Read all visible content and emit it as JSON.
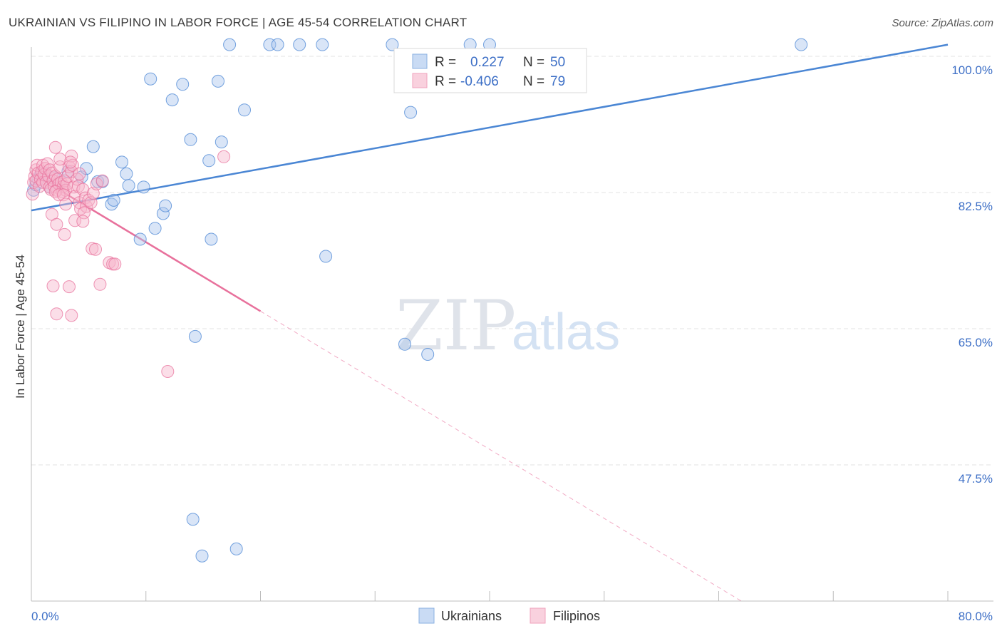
{
  "title": "UKRAINIAN VS FILIPINO IN LABOR FORCE | AGE 45-54 CORRELATION CHART",
  "source": "Source: ZipAtlas.com",
  "colors": {
    "blue": "#4a86d4",
    "blue_fill": "#aac6ee",
    "pink": "#e8719c",
    "pink_fill": "#f6b6cb",
    "tick_text": "#3d6fc6",
    "grid": "#e3e3e3"
  },
  "watermark": {
    "zip": "ZIP",
    "atlas": "atlas"
  },
  "legend": {
    "r_label": "R =",
    "n_label": "N =",
    "rows": [
      {
        "r": "0.227",
        "n": "50"
      },
      {
        "r": "-0.406",
        "n": "79"
      }
    ]
  },
  "bottom_legend": [
    "Ukrainians",
    "Filipinos"
  ],
  "chart_data": {
    "type": "scatter",
    "title": "UKRAINIAN VS FILIPINO IN LABOR FORCE | AGE 45-54 CORRELATION CHART",
    "xlabel": "",
    "ylabel": "In Labor Force | Age 45-54",
    "xlim": [
      0,
      80
    ],
    "ylim": [
      30,
      102
    ],
    "x_tick_labels": [
      "0.0%",
      "80.0%"
    ],
    "y_ticks": [
      {
        "value": 100,
        "label": "100.0%"
      },
      {
        "value": 82.5,
        "label": "82.5%"
      },
      {
        "value": 65,
        "label": "65.0%"
      },
      {
        "value": 47.5,
        "label": "47.5%"
      }
    ],
    "series": [
      {
        "name": "Ukrainians",
        "r": 0.227,
        "n": 50,
        "trend": {
          "x0": 0,
          "y0": 80.2,
          "x1": 80,
          "y1": 101.5,
          "solid_to": 80
        },
        "points": [
          [
            0.2,
            82.8
          ],
          [
            0.4,
            83.5
          ],
          [
            0.6,
            84.2
          ],
          [
            0.8,
            84.8
          ],
          [
            1.2,
            85.0
          ],
          [
            1.6,
            83.2
          ],
          [
            2.0,
            84.4
          ],
          [
            2.4,
            83.6
          ],
          [
            3.2,
            85.2
          ],
          [
            4.4,
            84.5
          ],
          [
            4.8,
            85.6
          ],
          [
            5.4,
            88.4
          ],
          [
            5.8,
            83.9
          ],
          [
            6.2,
            83.9
          ],
          [
            7.0,
            81.0
          ],
          [
            7.2,
            81.5
          ],
          [
            7.9,
            86.4
          ],
          [
            8.3,
            84.9
          ],
          [
            8.5,
            83.4
          ],
          [
            9.5,
            76.5
          ],
          [
            9.8,
            83.2
          ],
          [
            10.4,
            97.1
          ],
          [
            10.8,
            77.9
          ],
          [
            11.5,
            79.8
          ],
          [
            11.7,
            80.8
          ],
          [
            12.3,
            94.4
          ],
          [
            13.2,
            96.4
          ],
          [
            13.9,
            89.3
          ],
          [
            14.1,
            40.5
          ],
          [
            14.3,
            64.0
          ],
          [
            14.9,
            35.8
          ],
          [
            15.5,
            86.6
          ],
          [
            15.7,
            76.5
          ],
          [
            16.3,
            96.8
          ],
          [
            16.6,
            89.0
          ],
          [
            17.3,
            101.5
          ],
          [
            17.9,
            36.7
          ],
          [
            18.6,
            93.1
          ],
          [
            20.8,
            101.5
          ],
          [
            21.5,
            101.5
          ],
          [
            23.4,
            101.5
          ],
          [
            25.4,
            101.5
          ],
          [
            25.7,
            74.3
          ],
          [
            31.5,
            101.5
          ],
          [
            32.6,
            63.0
          ],
          [
            33.1,
            92.8
          ],
          [
            34.6,
            61.7
          ],
          [
            38.3,
            101.5
          ],
          [
            40.0,
            101.5
          ],
          [
            67.2,
            101.5
          ]
        ]
      },
      {
        "name": "Filipinos",
        "r": -0.406,
        "n": 79,
        "trend": {
          "x0": 0,
          "y0": 85.0,
          "x1": 80,
          "y1": 14.0,
          "solid_to": 20
        },
        "points": [
          [
            0.1,
            82.3
          ],
          [
            0.2,
            83.8
          ],
          [
            0.3,
            84.6
          ],
          [
            0.4,
            85.4
          ],
          [
            0.4,
            84.0
          ],
          [
            0.5,
            86.0
          ],
          [
            0.6,
            85.0
          ],
          [
            0.7,
            83.3
          ],
          [
            0.8,
            84.2
          ],
          [
            0.9,
            85.2
          ],
          [
            1.0,
            86.0
          ],
          [
            1.0,
            83.8
          ],
          [
            1.1,
            84.8
          ],
          [
            1.2,
            85.6
          ],
          [
            1.3,
            83.8
          ],
          [
            1.4,
            86.2
          ],
          [
            1.5,
            84.6
          ],
          [
            1.6,
            83.2
          ],
          [
            1.6,
            85.4
          ],
          [
            1.7,
            82.9
          ],
          [
            1.8,
            85.0
          ],
          [
            1.9,
            84.0
          ],
          [
            2.0,
            83.3
          ],
          [
            2.1,
            84.6
          ],
          [
            2.2,
            82.8
          ],
          [
            2.3,
            84.2
          ],
          [
            2.4,
            83.6
          ],
          [
            2.5,
            85.8
          ],
          [
            2.6,
            83.8
          ],
          [
            2.7,
            82.6
          ],
          [
            2.8,
            83.3
          ],
          [
            2.9,
            84.0
          ],
          [
            3.0,
            82.8
          ],
          [
            3.1,
            83.6
          ],
          [
            3.2,
            84.6
          ],
          [
            3.3,
            85.8
          ],
          [
            3.5,
            87.2
          ],
          [
            3.5,
            85.2
          ],
          [
            3.6,
            86.0
          ],
          [
            3.7,
            83.2
          ],
          [
            3.8,
            82.0
          ],
          [
            4.0,
            84.2
          ],
          [
            4.1,
            83.3
          ],
          [
            4.2,
            81.2
          ],
          [
            4.3,
            80.4
          ],
          [
            4.5,
            82.9
          ],
          [
            4.7,
            81.8
          ],
          [
            4.8,
            80.7
          ],
          [
            5.0,
            81.5
          ],
          [
            5.2,
            81.2
          ],
          [
            5.4,
            82.4
          ],
          [
            5.7,
            83.6
          ],
          [
            6.2,
            84.0
          ],
          [
            2.1,
            82.6
          ],
          [
            2.4,
            82.2
          ],
          [
            2.8,
            82.2
          ],
          [
            3.0,
            81.0
          ],
          [
            1.8,
            79.7
          ],
          [
            2.2,
            78.4
          ],
          [
            2.9,
            77.1
          ],
          [
            3.8,
            78.9
          ],
          [
            4.6,
            79.9
          ],
          [
            5.3,
            75.3
          ],
          [
            5.6,
            75.2
          ],
          [
            4.5,
            78.8
          ],
          [
            6.8,
            73.5
          ],
          [
            7.1,
            73.3
          ],
          [
            7.3,
            73.3
          ],
          [
            6.0,
            70.7
          ],
          [
            1.9,
            70.5
          ],
          [
            3.3,
            70.4
          ],
          [
            2.2,
            66.9
          ],
          [
            3.5,
            66.7
          ],
          [
            2.1,
            88.3
          ],
          [
            3.4,
            86.4
          ],
          [
            4.2,
            84.9
          ],
          [
            11.9,
            59.5
          ],
          [
            16.8,
            87.1
          ],
          [
            2.5,
            86.8
          ]
        ]
      }
    ]
  }
}
